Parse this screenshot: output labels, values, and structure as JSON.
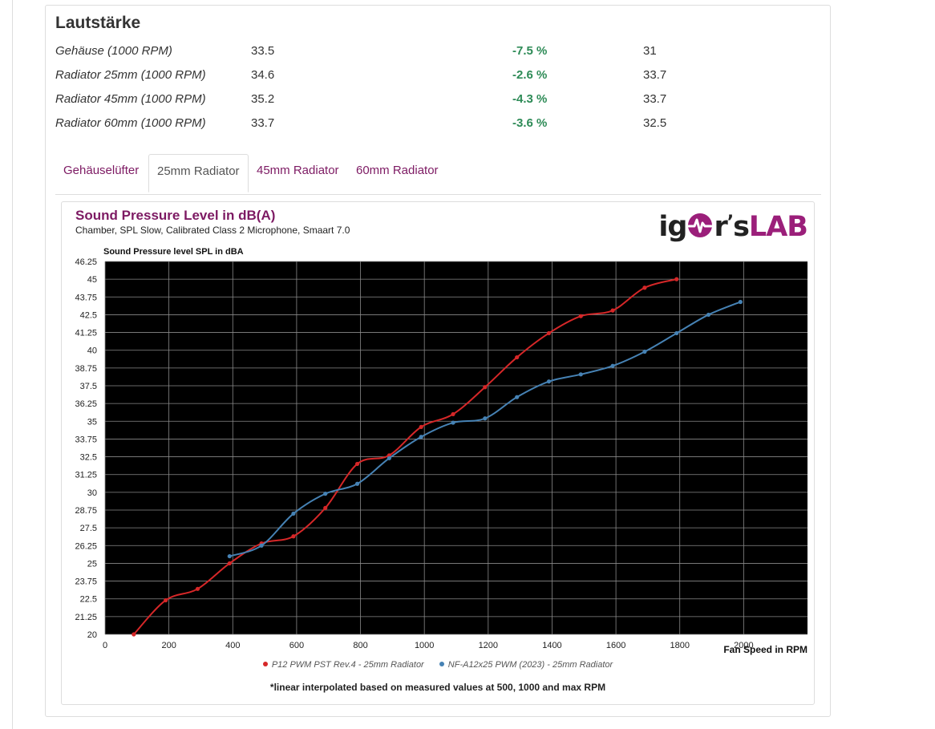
{
  "section": {
    "title": "Lautstärke",
    "rows": [
      {
        "name": "Gehäuse (1000 RPM)",
        "value": "33.5",
        "percent": "-7.5 %",
        "value2": "31"
      },
      {
        "name": "Radiator 25mm (1000 RPM)",
        "value": "34.6",
        "percent": "-2.6 %",
        "value2": "33.7"
      },
      {
        "name": "Radiator 45mm (1000 RPM)",
        "value": "35.2",
        "percent": "-4.3 %",
        "value2": "33.7"
      },
      {
        "name": "Radiator 60mm (1000 RPM)",
        "value": "33.7",
        "percent": "-3.6 %",
        "value2": "32.5"
      }
    ]
  },
  "tabs": [
    {
      "label": "Gehäuselüfter",
      "active": false
    },
    {
      "label": "25mm Radiator",
      "active": true
    },
    {
      "label": "45mm Radiator",
      "active": false
    },
    {
      "label": "60mm Radiator",
      "active": false
    }
  ],
  "logo": {
    "part1": "ig",
    "part2": "r",
    "part3": "s",
    "part4": "LAB"
  },
  "colors": {
    "accent": "#7d1a63",
    "positive": "#2e8b57",
    "series1": "#d62728",
    "series2": "#4682b4",
    "plot_bg": "#000000"
  },
  "chart_data": {
    "type": "line",
    "title": "Sound Pressure Level in dB(A)",
    "subtitle": "Chamber, SPL Slow, Calibrated Class 2 Microphone, Smaart 7.0",
    "ylabel": "Sound Pressure level SPL in dBA",
    "xlabel": "Fan Speed in RPM",
    "xlim": [
      0,
      2200
    ],
    "ylim": [
      20,
      46.25
    ],
    "xticks": [
      0,
      200,
      400,
      600,
      800,
      1000,
      1200,
      1400,
      1600,
      1800,
      2000
    ],
    "yticks": [
      20,
      21.25,
      22.5,
      23.75,
      25,
      26.25,
      27.5,
      28.75,
      30,
      31.25,
      32.5,
      33.75,
      35,
      36.25,
      37.5,
      38.75,
      40,
      41.25,
      42.5,
      43.75,
      45,
      46.25
    ],
    "grid": true,
    "legend_position": "bottom",
    "series": [
      {
        "name": "P12 PWM PST Rev.4 - 25mm Radiator",
        "color": "#d62728",
        "x": [
          90,
          190,
          290,
          390,
          490,
          590,
          690,
          790,
          890,
          990,
          1090,
          1190,
          1290,
          1390,
          1490,
          1590,
          1690,
          1790
        ],
        "y": [
          20.0,
          22.4,
          23.2,
          25.0,
          26.4,
          26.9,
          28.9,
          32.0,
          32.6,
          34.6,
          35.5,
          37.4,
          39.5,
          41.2,
          42.4,
          42.8,
          44.4,
          45.0
        ]
      },
      {
        "name": "NF-A12x25 PWM (2023) - 25mm Radiator",
        "color": "#4682b4",
        "x": [
          390,
          490,
          590,
          690,
          790,
          890,
          990,
          1090,
          1190,
          1290,
          1390,
          1490,
          1590,
          1690,
          1790,
          1890,
          1990
        ],
        "y": [
          25.5,
          26.25,
          28.5,
          29.9,
          30.6,
          32.4,
          33.9,
          34.9,
          35.2,
          36.7,
          37.8,
          38.3,
          38.9,
          39.9,
          41.2,
          42.5,
          43.4
        ]
      }
    ],
    "footnote": "*linear interpolated based on measured values at 500, 1000 and max RPM"
  }
}
